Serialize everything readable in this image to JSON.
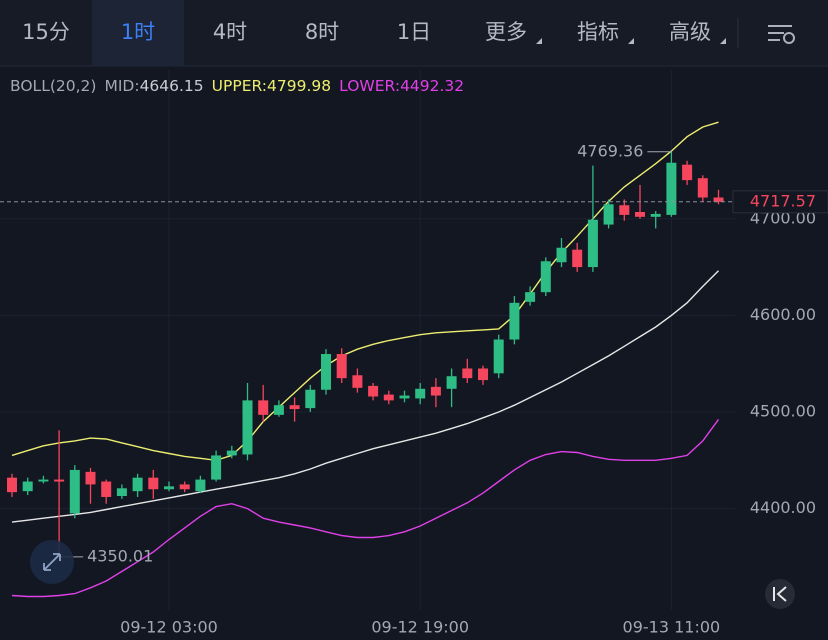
{
  "tabs": [
    "15分",
    "1时",
    "4时",
    "8时",
    "1日",
    "更多",
    "指标",
    "高级"
  ],
  "active_tab": 1,
  "chart_data": {
    "type": "candlestick",
    "indicator": "BOLL(20,2)",
    "categories": [
      null,
      null,
      null,
      null,
      null,
      null,
      null,
      null,
      null,
      null,
      "09-12 03:00",
      null,
      null,
      null,
      null,
      null,
      null,
      null,
      null,
      null,
      null,
      null,
      null,
      null,
      null,
      null,
      "09-12 19:00",
      null,
      null,
      null,
      null,
      null,
      null,
      null,
      null,
      null,
      null,
      null,
      null,
      null,
      null,
      null,
      "09-13 11:00",
      null,
      null,
      null
    ],
    "open": [
      4432,
      4418,
      4428,
      4430,
      4395,
      4438,
      4428,
      4413,
      4418,
      4432,
      4420,
      4425,
      4418,
      4430,
      4455,
      4456,
      4512,
      4497,
      4507,
      4504,
      4523,
      4560,
      4538,
      4527,
      4518,
      4514,
      4514,
      4526,
      4524,
      4545,
      4545,
      4540,
      4575,
      4614,
      4624,
      4655,
      4668,
      4650,
      4694,
      4714,
      4707,
      4702,
      4704,
      4756,
      4742,
      4722
    ],
    "high": [
      4436,
      4432,
      4434,
      4481,
      4445,
      4442,
      4430,
      4425,
      4436,
      4440,
      4428,
      4428,
      4434,
      4460,
      4465,
      4530,
      4528,
      4512,
      4515,
      4528,
      4565,
      4566,
      4545,
      4530,
      4522,
      4522,
      4530,
      4535,
      4545,
      4555,
      4548,
      4580,
      4620,
      4630,
      4660,
      4680,
      4675,
      4755,
      4720,
      4720,
      4735,
      4708,
      4769.36,
      4760,
      4745,
      4730
    ],
    "low": [
      4412,
      4414,
      4426,
      4350.01,
      4390,
      4405,
      4405,
      4410,
      4412,
      4410,
      4418,
      4417,
      4416,
      4428,
      4452,
      4450,
      4490,
      4495,
      4490,
      4500,
      4518,
      4530,
      4520,
      4512,
      4508,
      4510,
      4508,
      4505,
      4505,
      4530,
      4528,
      4535,
      4570,
      4610,
      4620,
      4650,
      4645,
      4645,
      4690,
      4698,
      4700,
      4690,
      4702,
      4735,
      4718,
      4715
    ],
    "close": [
      4417,
      4428,
      4430,
      4428,
      4440,
      4425,
      4412,
      4421,
      4432,
      4420,
      4423,
      4420,
      4430,
      4455,
      4460,
      4512,
      4497,
      4507,
      4503,
      4523,
      4560,
      4535,
      4525,
      4516,
      4512,
      4517,
      4524,
      4517,
      4537,
      4535,
      4533,
      4575,
      4613,
      4624,
      4656,
      4670,
      4650,
      4699,
      4715,
      4704,
      4702,
      4705,
      4758,
      4740,
      4722,
      4717.57
    ],
    "up_color": "#2ebd85",
    "down_color": "#f6465d",
    "series": [
      {
        "name": "MID:",
        "color": "#e6e6e6",
        "values": [
          4386,
          4388,
          4390,
          4392,
          4394,
          4396,
          4399,
          4402,
          4405,
          4408,
          4411,
          4414,
          4417,
          4420,
          4423,
          4426,
          4429,
          4432,
          4436,
          4441,
          4447,
          4452,
          4457,
          4462,
          4466,
          4470,
          4474,
          4478,
          4483,
          4488,
          4494,
          4500,
          4507,
          4515,
          4523,
          4531,
          4540,
          4549,
          4558,
          4568,
          4578,
          4588,
          4600,
          4613,
          4630,
          4646.15
        ]
      },
      {
        "name": "UPPER:",
        "color": "#eded6f",
        "values": [
          4455,
          4460,
          4465,
          4468,
          4470,
          4473,
          4472,
          4468,
          4464,
          4460,
          4457,
          4454,
          4452,
          4450,
          4455,
          4470,
          4490,
          4505,
          4520,
          4535,
          4548,
          4558,
          4565,
          4570,
          4574,
          4577,
          4580,
          4582,
          4583,
          4584,
          4585,
          4586,
          4600,
          4622,
          4645,
          4665,
          4682,
          4700,
          4718,
          4733,
          4745,
          4757,
          4770,
          4785,
          4795,
          4799.98
        ]
      },
      {
        "name": "LOWER:",
        "color": "#e040e8",
        "values": [
          4310,
          4309,
          4309,
          4310,
          4312,
          4318,
          4325,
          4335,
          4345,
          4355,
          4368,
          4380,
          4392,
          4402,
          4405,
          4400,
          4390,
          4386,
          4383,
          4380,
          4376,
          4372,
          4370,
          4370,
          4372,
          4376,
          4382,
          4390,
          4398,
          4406,
          4416,
          4428,
          4440,
          4450,
          4456,
          4459,
          4458,
          4454,
          4451,
          4450,
          4450,
          4450,
          4452,
          4455,
          4470,
          4492.32
        ]
      }
    ],
    "ylim": [
      4295,
      4854
    ],
    "yticks": [
      {
        "value": 4700,
        "label": "4700.00"
      },
      {
        "value": 4600,
        "label": "4600.00"
      },
      {
        "value": 4500,
        "label": "4500.00"
      },
      {
        "value": 4400,
        "label": "4400.00"
      }
    ],
    "grid": true,
    "high_marker": 42,
    "low_marker": 3
  }
}
